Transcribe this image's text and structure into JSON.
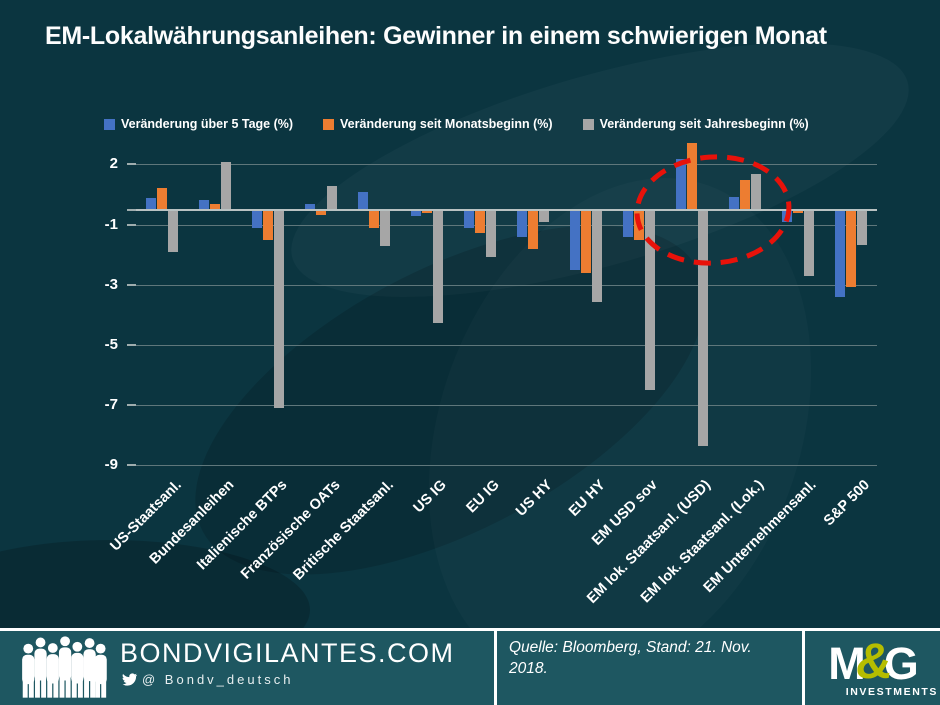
{
  "chart_data": {
    "type": "bar",
    "title": "EM-Lokalwährungsanleihen: Gewinner in einem schwierigen Monat",
    "categories": [
      "US-Staatsanl.",
      "Bundesanleihen",
      "Italienische BTPs",
      "Französische OATs",
      "Britische Staatsanl.",
      "US IG",
      "EU IG",
      "US HY",
      "EU HY",
      "EM USD sov",
      "EM lok. Staatsanl. (USD)",
      "EM lok. Staatsanl. (Lok.)",
      "EM Unternehmensanl.",
      "S&P 500"
    ],
    "series": [
      {
        "name": "Veränderung über 5 Tage (%)",
        "color": "#4472c4",
        "values": [
          0.4,
          0.35,
          -0.6,
          0.2,
          0.6,
          -0.2,
          -0.6,
          -0.9,
          -2.0,
          -0.9,
          1.7,
          0.45,
          -0.4,
          -2.9
        ]
      },
      {
        "name": "Veränderung seit Monatsbeginn (%)",
        "color": "#ed7d31",
        "values": [
          0.75,
          0.2,
          -1.0,
          -0.15,
          -0.6,
          -0.1,
          -0.75,
          -1.3,
          -2.1,
          -1.0,
          2.25,
          1.0,
          -0.1,
          -2.55
        ]
      },
      {
        "name": "Veränderung seit Jahresbeginn (%)",
        "color": "#a6a6a6",
        "values": [
          -1.4,
          1.6,
          -6.6,
          0.8,
          -1.2,
          -3.75,
          -1.55,
          -0.4,
          -3.05,
          -6.0,
          -7.85,
          1.2,
          -2.2,
          -1.15
        ]
      }
    ],
    "y_tick_labels": [
      "2",
      "-1",
      "-3",
      "-5",
      "-7",
      "-9"
    ],
    "ylim": [
      -9.7,
      2.4
    ],
    "xlabel": "",
    "ylabel": "",
    "grid": true,
    "legend_position": "top-left",
    "annotations": [
      {
        "type": "dashed-ellipse",
        "color": "#e8120a",
        "highlights": [
          "EM lok. Staatsanl. (USD)",
          "EM lok. Staatsanl. (Lok.)"
        ]
      }
    ]
  },
  "footer": {
    "site": "BONDVIGILANTES.COM",
    "twitter_handle": "@ Bondv_deutsch",
    "source_line1": "Quelle: Bloomberg, Stand: 21. Nov.",
    "source_line2": "2018.",
    "logo_m": "M",
    "logo_amp": "&",
    "logo_g": "G",
    "logo_sub": "INVESTMENTS"
  },
  "colors": {
    "background": "#0b3540",
    "footer_bg": "#1e5761",
    "bar_blue": "#4472c4",
    "bar_orange": "#ed7d31",
    "bar_gray": "#a6a6a6",
    "gridline": "#5f777b",
    "axis_line": "#b9c2c2",
    "accent_red": "#e8120a",
    "mg_green": "#b5bd00",
    "text": "#ffffff"
  }
}
